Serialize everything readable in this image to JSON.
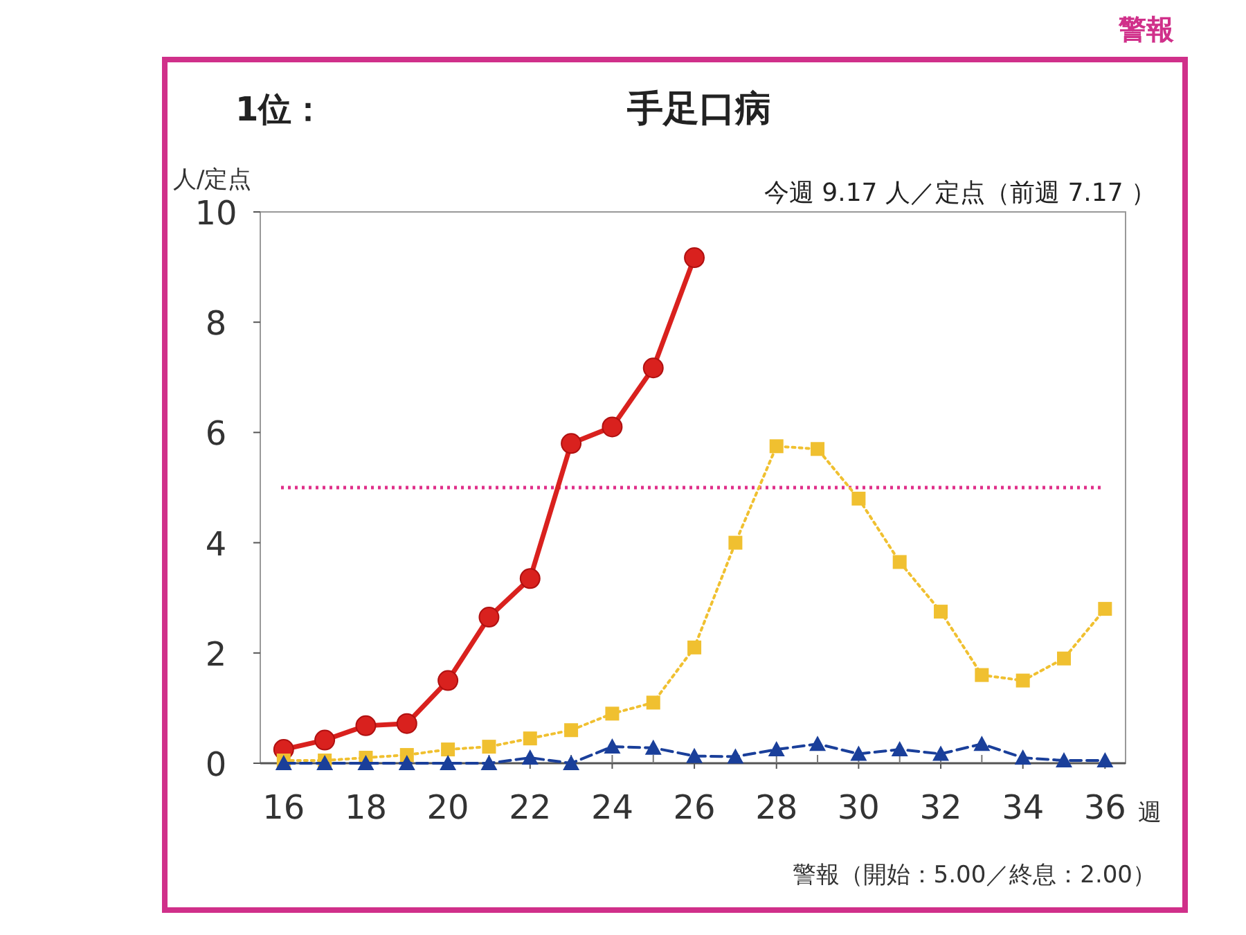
{
  "chart_data": {
    "type": "line",
    "title": "手足口病",
    "xlabel": "週",
    "ylabel": "人/定点",
    "annotations": [
      "警報",
      "1位：",
      "今週 9.17 人／定点（前週 7.17 ）",
      "警報（開始：5.00／終息：2.00）"
    ],
    "x": [
      16,
      17,
      18,
      19,
      20,
      21,
      22,
      23,
      24,
      25,
      26,
      27,
      28,
      29,
      30,
      31,
      32,
      33,
      34,
      35,
      36
    ],
    "series": [
      {
        "color": "#d9211e",
        "marker": "circle",
        "line_style": "solid",
        "values": [
          0.25,
          0.42,
          0.68,
          0.72,
          1.5,
          2.65,
          3.35,
          5.8,
          6.1,
          7.17,
          9.17,
          null,
          null,
          null,
          null,
          null,
          null,
          null,
          null,
          null,
          null
        ]
      },
      {
        "color": "#f0c030",
        "marker": "square",
        "line_style": "dotted",
        "values": [
          0.05,
          0.05,
          0.1,
          0.15,
          0.25,
          0.3,
          0.45,
          0.6,
          0.9,
          1.1,
          2.1,
          4.0,
          5.75,
          5.7,
          4.8,
          3.65,
          2.75,
          1.6,
          1.5,
          1.9,
          2.8
        ]
      },
      {
        "color": "#1a3f9a",
        "marker": "triangle",
        "line_style": "dashed",
        "values": [
          0,
          0,
          0,
          0,
          0,
          0,
          0.1,
          0,
          0.3,
          0.28,
          0.13,
          0.12,
          0.25,
          0.35,
          0.17,
          0.25,
          0.17,
          0.35,
          0.1,
          0.05,
          0.05
        ]
      }
    ],
    "xlim": [
      15.43,
      36.5
    ],
    "ylim": [
      0,
      10
    ],
    "xticks": [
      16,
      18,
      20,
      22,
      24,
      26,
      28,
      30,
      32,
      34,
      36
    ],
    "yticks": [
      0,
      2,
      4,
      6,
      8,
      10
    ],
    "grid": false,
    "ref_lines": [
      {
        "axis": "y",
        "value": 5,
        "color": "#e0308a",
        "line_style": "dotted"
      }
    ]
  }
}
